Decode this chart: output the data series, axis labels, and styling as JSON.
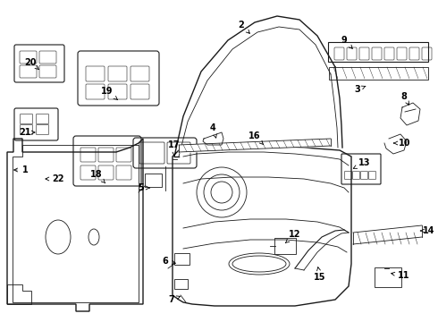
{
  "bg_color": "#ffffff",
  "line_color": "#1a1a1a",
  "lw_main": 1.0,
  "lw_thin": 0.6,
  "lw_med": 0.8,
  "label_fontsize": 7.0
}
